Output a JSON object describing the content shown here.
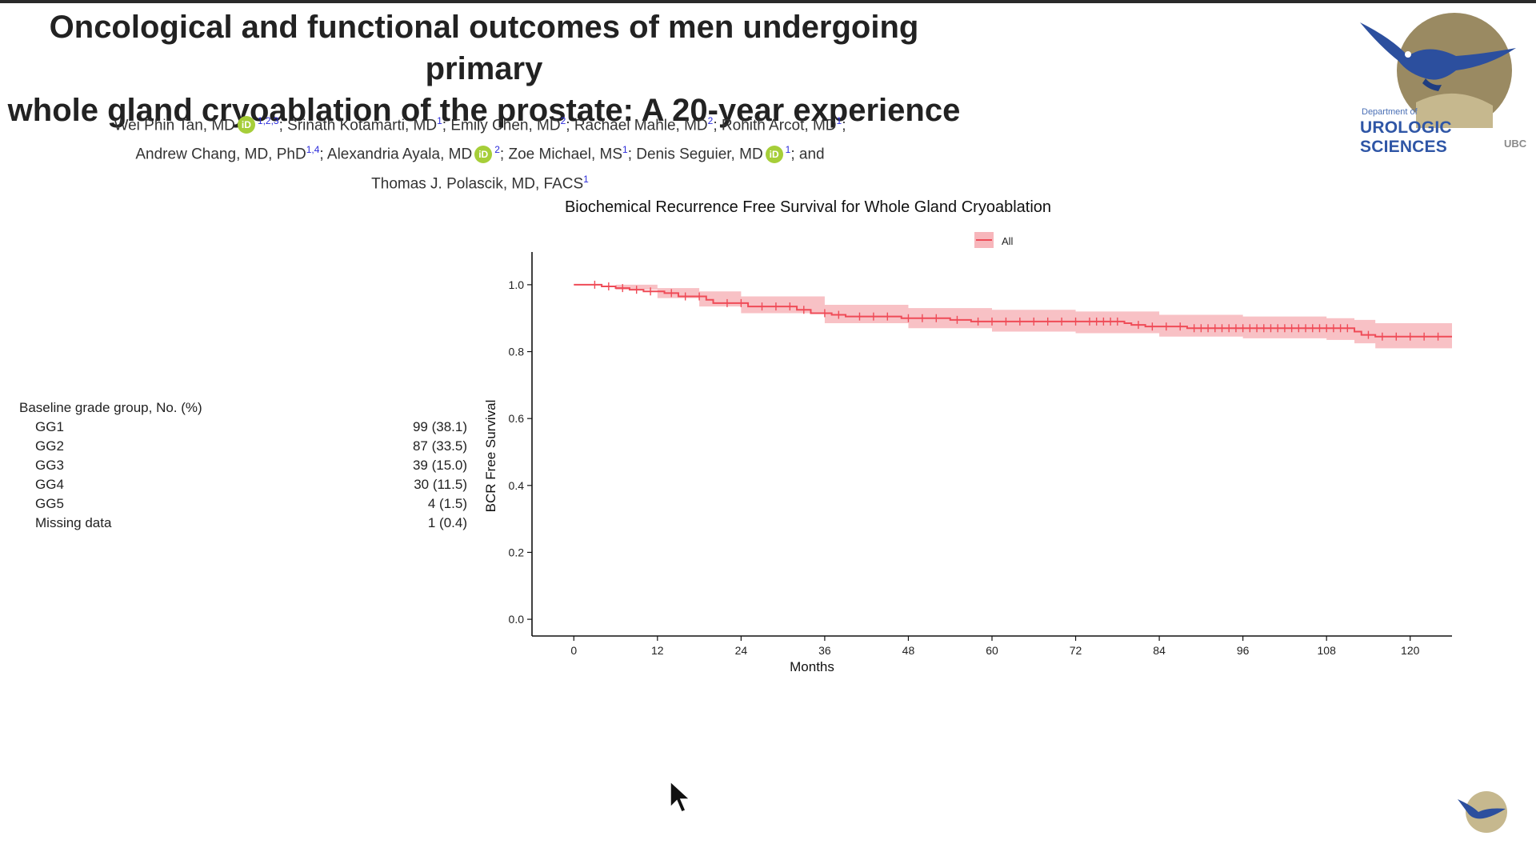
{
  "slide": {
    "title_lines": [
      "Oncological and functional outcomes of men undergoing primary",
      "whole gland cryoablation of the prostate: A 20-year experience"
    ],
    "authors": {
      "line1": [
        {
          "name": "Wei Phin Tan, MD",
          "orcid": true,
          "sup": "1,2,3",
          "sep": "; "
        },
        {
          "name": "Srinath Kotamarti, MD",
          "orcid": false,
          "sup": "1",
          "sep": "; "
        },
        {
          "name": "Emily Chen, MD",
          "orcid": false,
          "sup": "2",
          "sep": "; "
        },
        {
          "name": "Rachael Mahle, MD",
          "orcid": false,
          "sup": "2",
          "sep": "; "
        },
        {
          "name": "Rohith Arcot, MD",
          "orcid": false,
          "sup": "1",
          "sep": ";"
        }
      ],
      "line2": [
        {
          "name": "Andrew Chang, MD, PhD",
          "orcid": false,
          "sup": "1,4",
          "sep": "; "
        },
        {
          "name": "Alexandria Ayala, MD",
          "orcid": true,
          "sup": "2",
          "sep": "; "
        },
        {
          "name": "Zoe Michael, MS",
          "orcid": false,
          "sup": "1",
          "sep": "; "
        },
        {
          "name": "Denis Seguier, MD",
          "orcid": true,
          "sup": "1",
          "sep": "; and"
        }
      ],
      "line3": [
        {
          "name": "Thomas J. Polascik, MD, FACS",
          "orcid": false,
          "sup": "1",
          "sep": ""
        }
      ],
      "orcid_glyph": "iD"
    },
    "logo": {
      "dept": "Department of",
      "name": "UROLOGIC SCIENCES",
      "institution": "UBC",
      "icon": "eagle-icon"
    },
    "baseline_table": {
      "heading": "Baseline grade group, No. (%)",
      "rows": [
        {
          "label": "GG1",
          "value": "99 (38.1)"
        },
        {
          "label": "GG2",
          "value": "87 (33.5)"
        },
        {
          "label": "GG3",
          "value": "39 (15.0)"
        },
        {
          "label": "GG4",
          "value": "30 (11.5)"
        },
        {
          "label": "GG5",
          "value": "4 (1.5)"
        },
        {
          "label": "Missing data",
          "value": "1 (0.4)"
        }
      ]
    }
  },
  "chart_data": {
    "type": "line",
    "subtype": "kaplan-meier",
    "title": "Biochemical Recurrence Free Survival for Whole Gland Cryoablation",
    "xlabel": "Months",
    "ylabel": "BCR Free Survival",
    "xlim": [
      -6,
      126
    ],
    "ylim": [
      -0.05,
      1.05
    ],
    "xticks": [
      0,
      12,
      24,
      36,
      48,
      60,
      72,
      84,
      96,
      108,
      120
    ],
    "yticks": [
      "0.0",
      "0.2",
      "0.4",
      "0.6",
      "0.8",
      "1.0"
    ],
    "legend": {
      "position": "top",
      "entries": [
        "All"
      ]
    },
    "grid": false,
    "colors": {
      "line": "#ef4b57",
      "band": "#f7b6bb"
    },
    "series": [
      {
        "name": "All",
        "steps": [
          {
            "x": 0,
            "y": 1.0
          },
          {
            "x": 4,
            "y": 0.995
          },
          {
            "x": 6,
            "y": 0.99
          },
          {
            "x": 8,
            "y": 0.985
          },
          {
            "x": 10,
            "y": 0.98
          },
          {
            "x": 13,
            "y": 0.975
          },
          {
            "x": 15,
            "y": 0.965
          },
          {
            "x": 19,
            "y": 0.955
          },
          {
            "x": 20,
            "y": 0.945
          },
          {
            "x": 25,
            "y": 0.935
          },
          {
            "x": 32,
            "y": 0.925
          },
          {
            "x": 34,
            "y": 0.915
          },
          {
            "x": 37,
            "y": 0.91
          },
          {
            "x": 39,
            "y": 0.905
          },
          {
            "x": 47,
            "y": 0.9
          },
          {
            "x": 54,
            "y": 0.895
          },
          {
            "x": 57,
            "y": 0.89
          },
          {
            "x": 79,
            "y": 0.885
          },
          {
            "x": 80,
            "y": 0.88
          },
          {
            "x": 82,
            "y": 0.875
          },
          {
            "x": 88,
            "y": 0.87
          },
          {
            "x": 112,
            "y": 0.86
          },
          {
            "x": 113,
            "y": 0.85
          },
          {
            "x": 115,
            "y": 0.845
          },
          {
            "x": 126,
            "y": 0.845
          }
        ],
        "ci_lower": [
          {
            "x": 0,
            "y": 1.0
          },
          {
            "x": 6,
            "y": 0.985
          },
          {
            "x": 12,
            "y": 0.96
          },
          {
            "x": 18,
            "y": 0.935
          },
          {
            "x": 24,
            "y": 0.915
          },
          {
            "x": 36,
            "y": 0.885
          },
          {
            "x": 48,
            "y": 0.87
          },
          {
            "x": 60,
            "y": 0.86
          },
          {
            "x": 72,
            "y": 0.855
          },
          {
            "x": 84,
            "y": 0.845
          },
          {
            "x": 96,
            "y": 0.84
          },
          {
            "x": 108,
            "y": 0.835
          },
          {
            "x": 112,
            "y": 0.825
          },
          {
            "x": 115,
            "y": 0.81
          },
          {
            "x": 126,
            "y": 0.805
          }
        ],
        "ci_upper": [
          {
            "x": 0,
            "y": 1.0
          },
          {
            "x": 6,
            "y": 1.0
          },
          {
            "x": 12,
            "y": 0.99
          },
          {
            "x": 18,
            "y": 0.98
          },
          {
            "x": 24,
            "y": 0.965
          },
          {
            "x": 36,
            "y": 0.94
          },
          {
            "x": 48,
            "y": 0.93
          },
          {
            "x": 60,
            "y": 0.925
          },
          {
            "x": 72,
            "y": 0.92
          },
          {
            "x": 84,
            "y": 0.91
          },
          {
            "x": 96,
            "y": 0.905
          },
          {
            "x": 108,
            "y": 0.9
          },
          {
            "x": 112,
            "y": 0.895
          },
          {
            "x": 115,
            "y": 0.885
          },
          {
            "x": 126,
            "y": 0.88
          }
        ],
        "censor_x": [
          3,
          5,
          7,
          9,
          11,
          14,
          16,
          18,
          22,
          24,
          27,
          29,
          31,
          33,
          36,
          38,
          41,
          43,
          45,
          48,
          50,
          52,
          55,
          58,
          60,
          62,
          64,
          66,
          68,
          70,
          72,
          74,
          75,
          76,
          77,
          78,
          81,
          83,
          85,
          87,
          89,
          90,
          91,
          92,
          93,
          94,
          95,
          96,
          97,
          98,
          99,
          100,
          101,
          102,
          103,
          104,
          105,
          106,
          107,
          108,
          109,
          110,
          111,
          114,
          116,
          118,
          120,
          122,
          124
        ]
      }
    ]
  }
}
